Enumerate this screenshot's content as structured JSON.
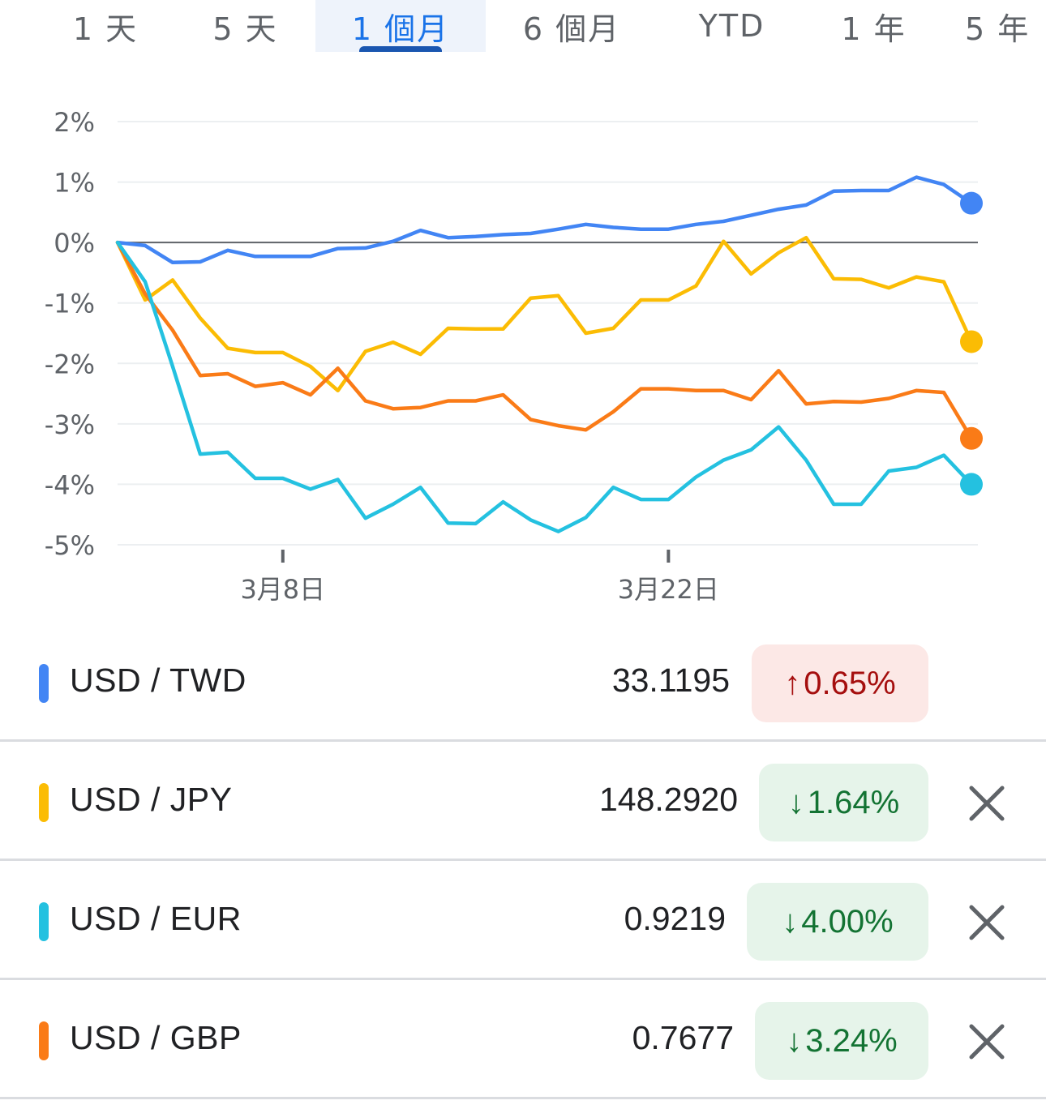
{
  "tabs": [
    {
      "label": "1 天",
      "active": false
    },
    {
      "label": "5 天",
      "active": false
    },
    {
      "label": "1 個月",
      "active": true
    },
    {
      "label": "6 個月",
      "active": false
    },
    {
      "label": "YTD",
      "active": false
    },
    {
      "label": "1 年",
      "active": false
    },
    {
      "label": "5 年",
      "active": false
    }
  ],
  "chart_data": {
    "type": "line",
    "y_ticks": [
      "2%",
      "1%",
      "0%",
      "-1%",
      "-2%",
      "-3%",
      "-4%",
      "-5%"
    ],
    "ylim": [
      -5,
      2
    ],
    "x_ticks": [
      {
        "label": "3月8日",
        "index": 6
      },
      {
        "label": "3月22日",
        "index": 20
      }
    ],
    "n_points": 32,
    "series": [
      {
        "name": "USD / TWD",
        "color": "#4285f4",
        "values": [
          0,
          -0.05,
          -0.33,
          -0.32,
          -0.13,
          -0.23,
          -0.23,
          -0.23,
          -0.1,
          -0.09,
          0.02,
          0.2,
          0.08,
          0.1,
          0.13,
          0.15,
          0.22,
          0.3,
          0.25,
          0.22,
          0.22,
          0.3,
          0.35,
          0.45,
          0.55,
          0.62,
          0.85,
          0.86,
          0.86,
          1.08,
          0.96,
          0.65
        ]
      },
      {
        "name": "USD / JPY",
        "color": "#fbbc04",
        "values": [
          0,
          -0.95,
          -0.62,
          -1.25,
          -1.75,
          -1.82,
          -1.82,
          -2.05,
          -2.45,
          -1.8,
          -1.65,
          -1.85,
          -1.42,
          -1.43,
          -1.43,
          -0.92,
          -0.88,
          -1.5,
          -1.42,
          -0.95,
          -0.95,
          -0.72,
          0.02,
          -0.52,
          -0.17,
          0.08,
          -0.6,
          -0.61,
          -0.75,
          -0.57,
          -0.65,
          -1.64
        ]
      },
      {
        "name": "USD / GBP",
        "color": "#fa7b17",
        "values": [
          0,
          -0.85,
          -1.45,
          -2.2,
          -2.17,
          -2.38,
          -2.32,
          -2.52,
          -2.08,
          -2.62,
          -2.75,
          -2.73,
          -2.62,
          -2.62,
          -2.52,
          -2.93,
          -3.03,
          -3.1,
          -2.8,
          -2.42,
          -2.42,
          -2.45,
          -2.45,
          -2.6,
          -2.12,
          -2.67,
          -2.63,
          -2.64,
          -2.58,
          -2.45,
          -2.48,
          -3.24
        ]
      },
      {
        "name": "USD / EUR",
        "color": "#24c1e0",
        "values": [
          0,
          -0.65,
          -2.05,
          -3.5,
          -3.47,
          -3.9,
          -3.9,
          -4.08,
          -3.92,
          -4.56,
          -4.33,
          -4.05,
          -4.64,
          -4.65,
          -4.29,
          -4.59,
          -4.78,
          -4.55,
          -4.05,
          -4.25,
          -4.25,
          -3.88,
          -3.6,
          -3.43,
          -3.05,
          -3.6,
          -4.33,
          -4.33,
          -3.78,
          -3.72,
          -3.52,
          -4.0
        ]
      }
    ]
  },
  "rows": [
    {
      "pair": "USD / TWD",
      "color": "#4285f4",
      "price": "33.1195",
      "direction": "up",
      "arrow": "↑",
      "change": "0.65%",
      "removable": false
    },
    {
      "pair": "USD / JPY",
      "color": "#fbbc04",
      "price": "148.2920",
      "direction": "down",
      "arrow": "↓",
      "change": "1.64%",
      "removable": true
    },
    {
      "pair": "USD / EUR",
      "color": "#24c1e0",
      "price": "0.9219",
      "direction": "down",
      "arrow": "↓",
      "change": "4.00%",
      "removable": true
    },
    {
      "pair": "USD / GBP",
      "color": "#fa7b17",
      "price": "0.7677",
      "direction": "down",
      "arrow": "↓",
      "change": "3.24%",
      "removable": true
    }
  ]
}
